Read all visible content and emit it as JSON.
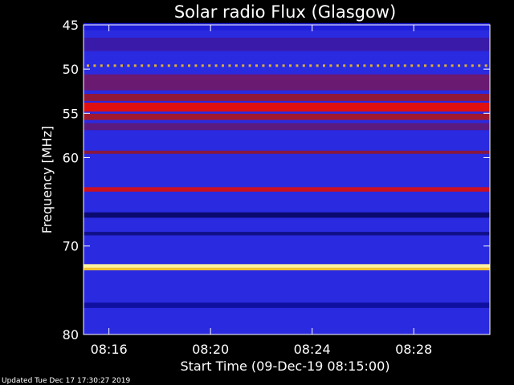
{
  "chart_data": {
    "type": "heatmap",
    "title": "Solar radio Flux (Glasgow)",
    "ylabel": "Frequency [MHz]",
    "xlabel": "Start Time (09-Dec-19 08:15:00)",
    "ylim": [
      45,
      80
    ],
    "xlim_minutes": [
      15.0,
      31.0
    ],
    "y_ticks": [
      {
        "value": 45,
        "label": "45"
      },
      {
        "value": 50,
        "label": "50"
      },
      {
        "value": 55,
        "label": "55"
      },
      {
        "value": 60,
        "label": "60"
      },
      {
        "value": 70,
        "label": "70"
      },
      {
        "value": 80,
        "label": "80"
      }
    ],
    "x_ticks": [
      {
        "value": 16,
        "label": "08:16"
      },
      {
        "value": 20,
        "label": "08:20"
      },
      {
        "value": 24,
        "label": "08:24"
      },
      {
        "value": 28,
        "label": "08:28"
      }
    ],
    "bands": [
      {
        "freq": 45.2,
        "width": 0.8,
        "color": "#1e1ed8"
      },
      {
        "freq": 47.2,
        "width": 1.5,
        "color": "#3a1aa8"
      },
      {
        "freq": 49.6,
        "width": 0.25,
        "color": "#e0b030",
        "dashed": true
      },
      {
        "freq": 51.5,
        "width": 1.8,
        "color": "#6a1a70"
      },
      {
        "freq": 53.2,
        "width": 0.8,
        "color": "#901838"
      },
      {
        "freq": 54.3,
        "width": 1.0,
        "color": "#e01010"
      },
      {
        "freq": 55.4,
        "width": 0.7,
        "color": "#a01830"
      },
      {
        "freq": 56.5,
        "width": 0.8,
        "color": "#5a1a80"
      },
      {
        "freq": 59.4,
        "width": 0.35,
        "color": "#8a1840"
      },
      {
        "freq": 63.6,
        "width": 0.5,
        "color": "#cc1020"
      },
      {
        "freq": 66.5,
        "width": 0.6,
        "color": "#0a0a70"
      },
      {
        "freq": 68.6,
        "width": 0.4,
        "color": "#10108a"
      },
      {
        "freq": 72.3,
        "width": 0.5,
        "color": "#fff0a0"
      },
      {
        "freq": 72.6,
        "width": 0.3,
        "color": "#f0c030"
      },
      {
        "freq": 76.7,
        "width": 0.6,
        "color": "#1010a0"
      }
    ],
    "background_color": "#2a2ae0",
    "footer": "Updated Tue Dec 17 17:30:27 2019"
  }
}
